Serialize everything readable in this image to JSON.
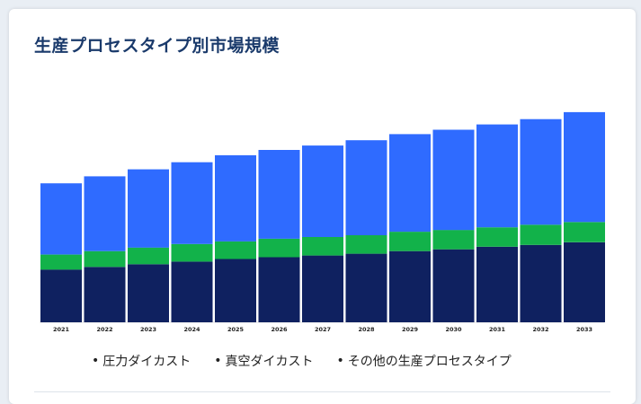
{
  "title": "生産プロセスタイプ別市場規模",
  "colors": {
    "pressure": "#0f2160",
    "vacuum": "#12b24a",
    "other": "#2f6bff",
    "title": "#1a3a6b"
  },
  "chart_data": {
    "type": "bar",
    "stacked": true,
    "categories": [
      "2021",
      "2022",
      "2023",
      "2024",
      "2025",
      "2026",
      "2027",
      "2028",
      "2029",
      "2030",
      "2031",
      "2032",
      "2033"
    ],
    "series": [
      {
        "name": "圧力ダイカスト",
        "color": "#0f2160",
        "values": [
          60,
          63,
          66,
          69,
          72,
          74,
          76,
          78,
          81,
          83,
          86,
          88,
          91
        ]
      },
      {
        "name": "真空ダイカスト",
        "color": "#12b24a",
        "values": [
          17,
          18,
          19,
          20,
          20,
          21,
          21,
          21,
          22,
          22,
          22,
          23,
          23
        ]
      },
      {
        "name": "その他の生産プロセスタイプ",
        "color": "#2f6bff",
        "values": [
          81,
          85,
          89,
          93,
          98,
          101,
          104,
          108,
          111,
          114,
          117,
          120,
          125
        ]
      }
    ],
    "ylim": [
      0,
      245
    ],
    "grid": false,
    "legend": "bottom"
  }
}
